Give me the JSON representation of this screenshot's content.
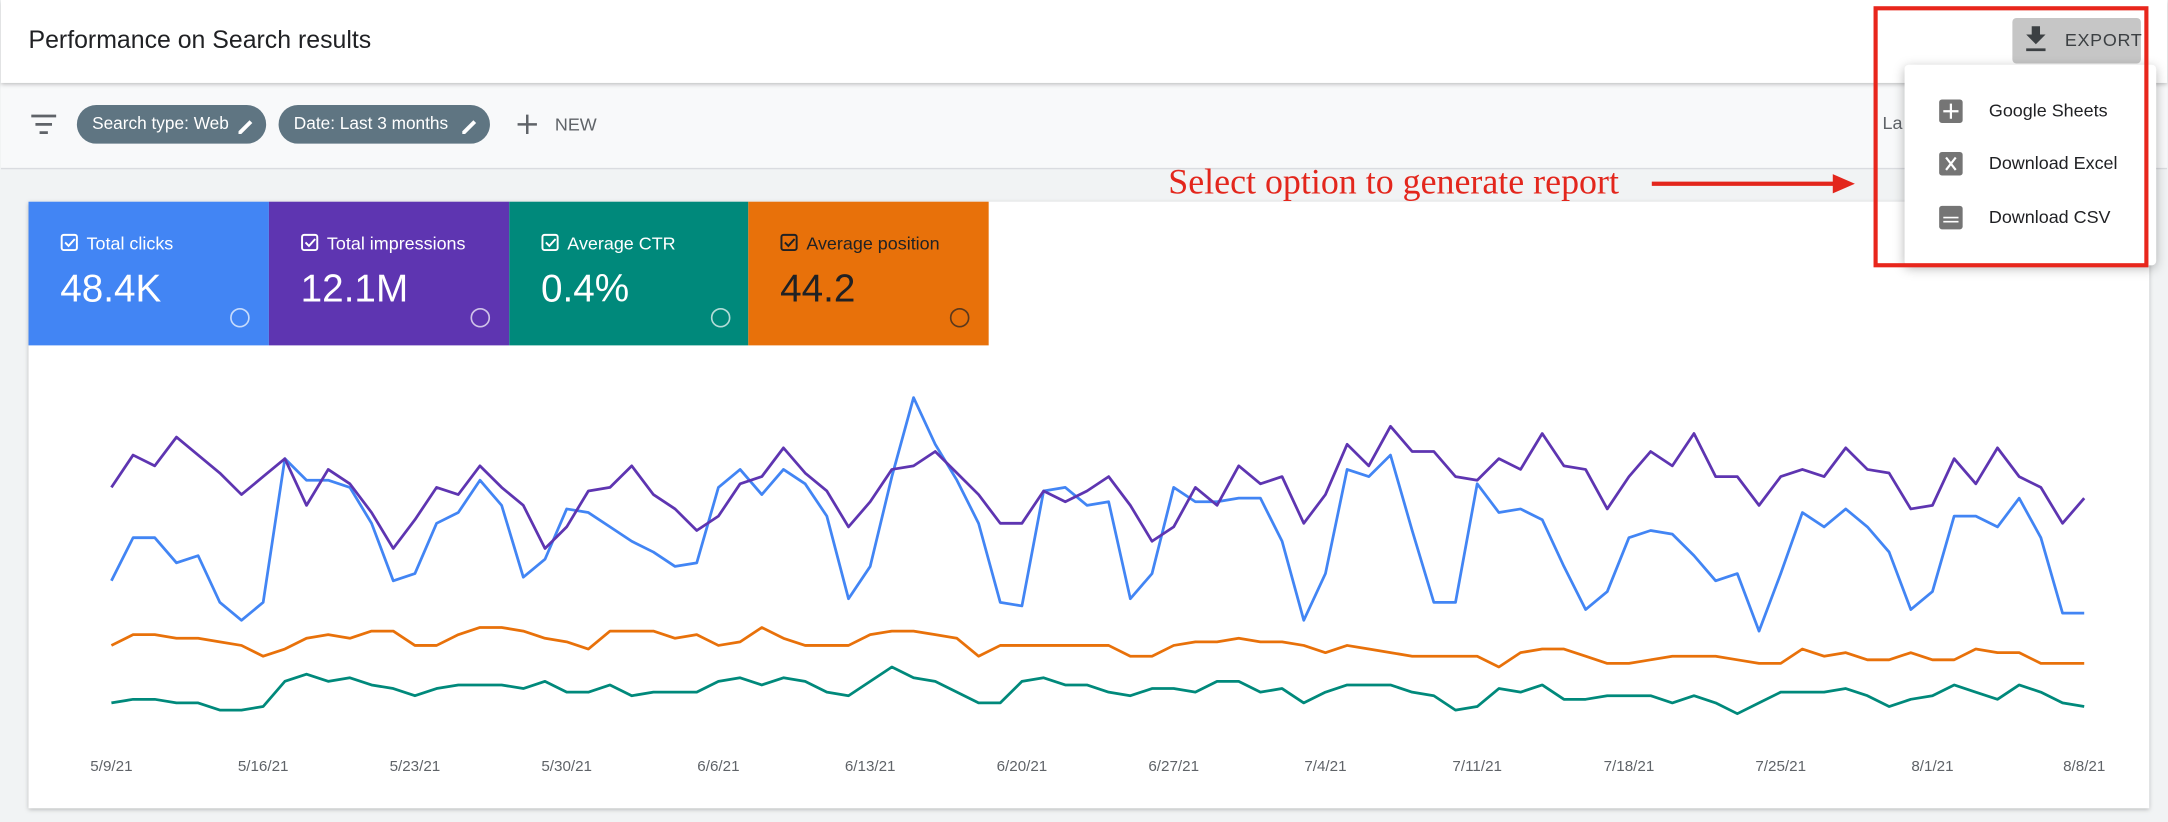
{
  "header": {
    "title": "Performance on Search results",
    "export": "EXPORT"
  },
  "filters": {
    "chips": [
      "Search type: Web",
      "Date: Last 3 months"
    ],
    "new": "NEW",
    "clipped": "La"
  },
  "export_menu": {
    "items": [
      "Google Sheets",
      "Download Excel",
      "Download CSV"
    ]
  },
  "annotation": "Select option to generate report",
  "chart_data": {
    "type": "line",
    "categories": [
      "5/9/21",
      null,
      null,
      null,
      null,
      null,
      null,
      "5/16/21",
      null,
      null,
      null,
      null,
      null,
      null,
      "5/23/21",
      null,
      null,
      null,
      null,
      null,
      null,
      "5/30/21",
      null,
      null,
      null,
      null,
      null,
      null,
      "6/6/21",
      null,
      null,
      null,
      null,
      null,
      null,
      "6/13/21",
      null,
      null,
      null,
      null,
      null,
      null,
      "6/20/21",
      null,
      null,
      null,
      null,
      null,
      null,
      "6/27/21",
      null,
      null,
      null,
      null,
      null,
      null,
      "7/4/21",
      null,
      null,
      null,
      null,
      null,
      null,
      "7/11/21",
      null,
      null,
      null,
      null,
      null,
      null,
      "7/18/21",
      null,
      null,
      null,
      null,
      null,
      null,
      "7/25/21",
      null,
      null,
      null,
      null,
      null,
      null,
      "8/1/21",
      null,
      null,
      null,
      null,
      null,
      null,
      "8/8/21"
    ],
    "ylim": [
      0,
      100
    ],
    "series": [
      {
        "name": "Total clicks",
        "total": "48.4K",
        "color": "#4285f4",
        "text_color": "#ffffff",
        "values": [
          46,
          58,
          58,
          51,
          53,
          40,
          35,
          40,
          80,
          74,
          74,
          72,
          62,
          46,
          48,
          62,
          65,
          74,
          67,
          47,
          52,
          66,
          65,
          61,
          57,
          54,
          50,
          51,
          72,
          77,
          70,
          77,
          73,
          64,
          41,
          50,
          75,
          97,
          84,
          74,
          62,
          40,
          39,
          71,
          72,
          67,
          68,
          41,
          48,
          72,
          68,
          68,
          69,
          69,
          57,
          35,
          48,
          77,
          75,
          81,
          60,
          40,
          40,
          73,
          65,
          66,
          63,
          50,
          38,
          43,
          58,
          60,
          59,
          53,
          46,
          48,
          32,
          48,
          65,
          61,
          66,
          61,
          54,
          38,
          43,
          64,
          64,
          61,
          69,
          58,
          37,
          37
        ]
      },
      {
        "name": "Total impressions",
        "total": "12.1M",
        "color": "#5e35b1",
        "text_color": "#ffffff",
        "values": [
          72,
          81,
          78,
          86,
          81,
          76,
          70,
          75,
          80,
          67,
          77,
          73,
          65,
          55,
          63,
          72,
          70,
          78,
          72,
          67,
          55,
          61,
          71,
          72,
          78,
          70,
          66,
          60,
          64,
          73,
          75,
          83,
          76,
          71,
          61,
          68,
          77,
          78,
          82,
          76,
          70,
          62,
          62,
          71,
          68,
          71,
          75,
          67,
          57,
          61,
          72,
          67,
          78,
          73,
          75,
          62,
          70,
          84,
          78,
          89,
          82,
          82,
          75,
          74,
          80,
          77,
          87,
          78,
          77,
          66,
          75,
          82,
          78,
          87,
          75,
          75,
          67,
          75,
          77,
          75,
          83,
          77,
          76,
          66,
          67,
          80,
          73,
          83,
          75,
          72,
          62,
          69
        ]
      },
      {
        "name": "Average CTR",
        "total": "0.4%",
        "color": "#00897b",
        "text_color": "#ffffff",
        "values": [
          12,
          13,
          13,
          12,
          12,
          10,
          10,
          11,
          18,
          20,
          18,
          19,
          17,
          16,
          14,
          16,
          17,
          17,
          17,
          16,
          18,
          15,
          15,
          17,
          14,
          15,
          15,
          15,
          18,
          19,
          17,
          19,
          18,
          15,
          14,
          18,
          22,
          19,
          18,
          15,
          12,
          12,
          18,
          19,
          17,
          17,
          15,
          14,
          16,
          16,
          15,
          18,
          18,
          15,
          16,
          12,
          15,
          17,
          17,
          17,
          15,
          14,
          10,
          11,
          16,
          15,
          17,
          13,
          13,
          14,
          14,
          14,
          12,
          14,
          12,
          9,
          12,
          15,
          15,
          15,
          16,
          14,
          11,
          13,
          14,
          17,
          15,
          13,
          17,
          15,
          12,
          11
        ]
      },
      {
        "name": "Average position",
        "total": "44.2",
        "color": "#e8710a",
        "text_color": "#202124",
        "values": [
          28,
          31,
          31,
          30,
          30,
          29,
          28,
          25,
          27,
          30,
          31,
          30,
          32,
          32,
          28,
          28,
          31,
          33,
          33,
          32,
          30,
          29,
          27,
          32,
          32,
          32,
          30,
          31,
          28,
          29,
          33,
          30,
          28,
          28,
          28,
          31,
          32,
          32,
          31,
          30,
          25,
          28,
          28,
          28,
          28,
          28,
          28,
          25,
          25,
          28,
          29,
          29,
          30,
          29,
          29,
          28,
          26,
          28,
          27,
          26,
          25,
          25,
          25,
          25,
          22,
          26,
          27,
          27,
          25,
          23,
          23,
          24,
          25,
          25,
          25,
          24,
          23,
          23,
          27,
          25,
          26,
          24,
          24,
          26,
          24,
          24,
          27,
          26,
          26,
          23,
          23,
          23
        ]
      }
    ]
  }
}
